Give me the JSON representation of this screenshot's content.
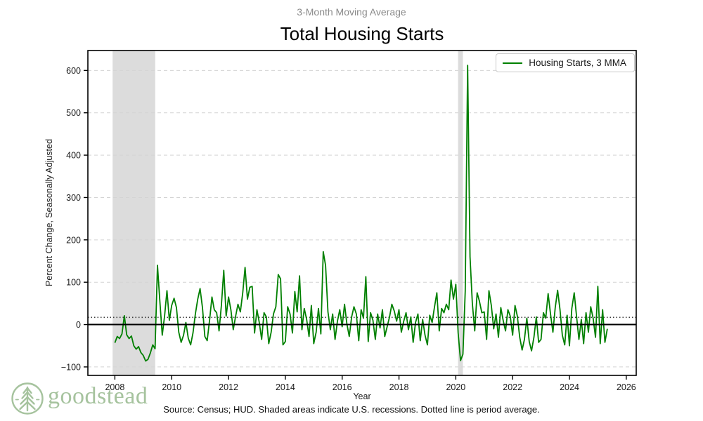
{
  "header": {
    "subtitle": "3-Month Moving Average",
    "title": "Total Housing Starts"
  },
  "footer": {
    "source": "Source: Census; HUD. Shaded areas indicate U.S. recessions. Dotted line is period average.",
    "logo_text": "goodstead"
  },
  "colors": {
    "line": "#008000",
    "recession_band": "#dcdcdc",
    "gridline": "#d4d4d4",
    "average_line": "#3c3c3c",
    "zero_line": "#000000",
    "spine": "#000000",
    "logo_green": "#a6c39e",
    "subtitle_gray": "#8a8a8a"
  },
  "chart_data": {
    "type": "line",
    "title": "Total Housing Starts",
    "subtitle": "3-Month Moving Average",
    "xlabel": "Year",
    "ylabel": "Percent Change, Seasonally Adjusted",
    "xlim": [
      2007.05,
      2026.35
    ],
    "ylim": [
      -120,
      647
    ],
    "xticks": [
      2008,
      2010,
      2012,
      2014,
      2016,
      2018,
      2020,
      2022,
      2024,
      2026
    ],
    "yticks": [
      -100,
      0,
      100,
      200,
      300,
      400,
      500,
      600
    ],
    "grid": "horizontal-dashed",
    "zero_line": 0,
    "period_average": 17,
    "recessions": [
      {
        "start": 2007.92,
        "end": 2009.42
      },
      {
        "start": 2020.08,
        "end": 2020.25
      }
    ],
    "legend": {
      "position": "upper-right",
      "entries": [
        {
          "label": "Housing Starts, 3 MMA",
          "color": "#008000"
        }
      ]
    },
    "series": [
      {
        "name": "Housing Starts, 3 MMA",
        "color": "#008000",
        "x_start": 2008.0,
        "x_step_years": 0.0833333,
        "values": [
          -43,
          -28,
          -33,
          -22,
          21,
          -24,
          -33,
          -27,
          -50,
          -58,
          -52,
          -66,
          -73,
          -86,
          -82,
          -67,
          -48,
          -57,
          140,
          55,
          -25,
          20,
          80,
          10,
          45,
          62,
          40,
          -18,
          -42,
          -25,
          5,
          -32,
          -48,
          -20,
          25,
          60,
          85,
          40,
          -28,
          -38,
          10,
          65,
          35,
          28,
          -15,
          45,
          128,
          20,
          65,
          35,
          -12,
          20,
          48,
          30,
          75,
          135,
          60,
          88,
          90,
          -20,
          35,
          5,
          -35,
          28,
          18,
          -45,
          -18,
          25,
          42,
          118,
          108,
          -48,
          -40,
          42,
          25,
          -20,
          78,
          30,
          115,
          -12,
          38,
          12,
          -28,
          45,
          -45,
          -18,
          38,
          -22,
          172,
          140,
          30,
          -12,
          25,
          -35,
          8,
          35,
          -5,
          48,
          2,
          -28,
          18,
          42,
          25,
          -38,
          35,
          15,
          113,
          -40,
          28,
          10,
          -35,
          25,
          -8,
          35,
          -28,
          -5,
          18,
          48,
          32,
          8,
          35,
          -18,
          8,
          28,
          -12,
          18,
          -42,
          5,
          25,
          -38,
          12,
          -25,
          -48,
          22,
          5,
          42,
          75,
          -15,
          38,
          28,
          48,
          35,
          105,
          60,
          95,
          -20,
          -85,
          -70,
          80,
          612,
          160,
          50,
          -15,
          75,
          55,
          28,
          30,
          -35,
          80,
          45,
          -10,
          25,
          -30,
          40,
          10,
          -15,
          35,
          20,
          -25,
          45,
          20,
          -30,
          -60,
          -35,
          15,
          -40,
          -62,
          -30,
          18,
          -42,
          -35,
          28,
          15,
          73,
          25,
          -18,
          40,
          81,
          35,
          -25,
          -48,
          22,
          -50,
          38,
          75,
          20,
          -35,
          12,
          -45,
          28,
          -18,
          42,
          15,
          -30,
          90,
          -45,
          35,
          -42,
          -10
        ]
      }
    ]
  }
}
